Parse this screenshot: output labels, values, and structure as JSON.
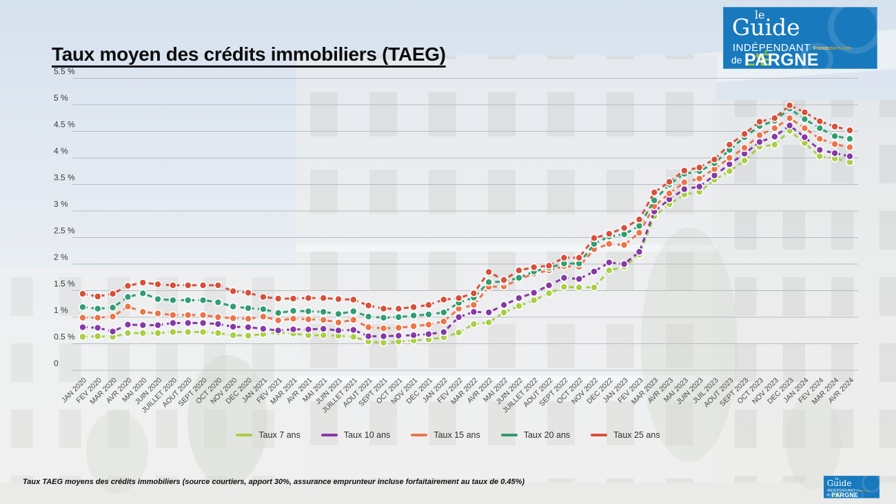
{
  "header": {
    "title": "Taux moyen des crédits immobiliers (TAEG)"
  },
  "logo": {
    "le": "le",
    "guide": "Guide",
    "independant": "INDÉPENDANT",
    "ft_white": "France",
    "ft_orange": "Transactions.com",
    "de": "de",
    "epargne_accent": "L'É",
    "epargne_rest": "PARGNE",
    "bg_color": "#1879bd",
    "accent_color": "#97c93d"
  },
  "footer": {
    "note": "Taux TAEG moyens des crédits immobiliers (source courtiers, apport 30%, assurance emprunteur incluse forfaitairement au taux de 0.45%)"
  },
  "chart_data": {
    "type": "line",
    "title": "Taux moyen des crédits immobiliers (TAEG)",
    "unit": "%",
    "grid": true,
    "legend_position": "bottom",
    "ylim": [
      0,
      5.5
    ],
    "y_ticks": [
      "5.5 %",
      "5 %",
      "4.5 %",
      "4 %",
      "3.5 %",
      "3 %",
      "2.5 %",
      "2 %",
      "1.5 %",
      "1 %",
      "0.5 %",
      "0"
    ],
    "x_labels": [
      "JAN 2020",
      "FEV 2020",
      "MAR 2020",
      "AVR 2020",
      "MAI 2020",
      "JUIN 2020",
      "JUILLET 2020",
      "AOUT 2020",
      "SEPT 2020",
      "OCT 2020",
      "NOV 2020",
      "DEC 2020",
      "JAN 2021",
      "FEV 2021",
      "MAR 2021",
      "AVR 2021",
      "MAI 2021",
      "JUIN 2021",
      "JUILLET 2021",
      "AOUT 2021",
      "SEPT 2021",
      "OCT 2021",
      "NOV 2021",
      "DEC 2021",
      "JAN 2022",
      "FEV 2022",
      "MAR 2022",
      "AVR 2022",
      "MAI 2022",
      "JUIN 2022",
      "JUILLET 2022",
      "AOUT 2022",
      "SEPT 2022",
      "OCT 2022",
      "NOV 2022",
      "DEC 2022",
      "JAN 2023",
      "FEV 2023",
      "MAR 2023",
      "AVR 2023",
      "MAI 2023",
      "JUIN 2023",
      "JUIL 2023",
      "AOUT 2023",
      "SEPT 2023",
      "OCT 2023",
      "NOV 2023",
      "DEC 2023",
      "JAN 2024",
      "FEV 2024",
      "MAR 2024",
      "AVR 2024"
    ],
    "series": [
      {
        "name": "Taux 7 ans",
        "color": "#a8cf45",
        "values": [
          0.63,
          0.64,
          0.63,
          0.7,
          0.7,
          0.7,
          0.72,
          0.72,
          0.72,
          0.7,
          0.66,
          0.65,
          0.68,
          0.71,
          0.69,
          0.66,
          0.66,
          0.65,
          0.63,
          0.54,
          0.52,
          0.54,
          0.56,
          0.58,
          0.62,
          0.71,
          0.87,
          0.9,
          1.09,
          1.21,
          1.32,
          1.45,
          1.57,
          1.56,
          1.56,
          1.88,
          1.95,
          2.18,
          2.9,
          3.13,
          3.31,
          3.36,
          3.59,
          3.75,
          3.95,
          4.21,
          4.25,
          4.51,
          4.28,
          4.03,
          3.99,
          3.92
        ]
      },
      {
        "name": "Taux 10 ans",
        "color": "#8639a8",
        "values": [
          0.81,
          0.8,
          0.73,
          0.86,
          0.85,
          0.85,
          0.89,
          0.89,
          0.89,
          0.87,
          0.82,
          0.81,
          0.78,
          0.75,
          0.77,
          0.77,
          0.78,
          0.75,
          0.76,
          0.64,
          0.64,
          0.65,
          0.66,
          0.68,
          0.72,
          1.0,
          1.1,
          1.09,
          1.23,
          1.36,
          1.46,
          1.6,
          1.74,
          1.72,
          1.86,
          2.03,
          2.0,
          2.23,
          2.99,
          3.22,
          3.41,
          3.46,
          3.67,
          3.88,
          4.08,
          4.3,
          4.4,
          4.61,
          4.39,
          4.15,
          4.09,
          4.03
        ]
      },
      {
        "name": "Taux 15 ans",
        "color": "#ee7448",
        "values": [
          0.99,
          0.99,
          1.01,
          1.2,
          1.1,
          1.07,
          1.04,
          1.04,
          1.04,
          1.0,
          0.98,
          0.97,
          1.01,
          0.94,
          0.97,
          0.96,
          0.95,
          0.9,
          0.95,
          0.81,
          0.79,
          0.8,
          0.83,
          0.86,
          0.92,
          1.16,
          1.23,
          1.57,
          1.58,
          1.71,
          1.82,
          1.88,
          1.96,
          1.95,
          2.28,
          2.38,
          2.36,
          2.59,
          3.09,
          3.33,
          3.54,
          3.61,
          3.79,
          4.0,
          4.19,
          4.43,
          4.56,
          4.75,
          4.56,
          4.36,
          4.26,
          4.2
        ]
      },
      {
        "name": "Taux 20 ans",
        "color": "#2f9e71",
        "values": [
          1.19,
          1.16,
          1.18,
          1.38,
          1.45,
          1.34,
          1.32,
          1.32,
          1.32,
          1.28,
          1.2,
          1.17,
          1.15,
          1.08,
          1.12,
          1.11,
          1.1,
          1.06,
          1.11,
          1.01,
          0.99,
          1.0,
          1.03,
          1.05,
          1.09,
          1.27,
          1.37,
          1.66,
          1.67,
          1.74,
          1.86,
          1.93,
          2.01,
          2.01,
          2.38,
          2.52,
          2.56,
          2.72,
          3.2,
          3.5,
          3.7,
          3.75,
          3.9,
          4.15,
          4.39,
          4.6,
          4.7,
          4.93,
          4.73,
          4.56,
          4.41,
          4.36
        ]
      },
      {
        "name": "Taux 25 ans",
        "color": "#d94f38",
        "values": [
          1.44,
          1.39,
          1.44,
          1.59,
          1.65,
          1.62,
          1.6,
          1.6,
          1.6,
          1.6,
          1.49,
          1.46,
          1.38,
          1.35,
          1.35,
          1.36,
          1.36,
          1.34,
          1.33,
          1.22,
          1.16,
          1.16,
          1.19,
          1.23,
          1.33,
          1.36,
          1.45,
          1.85,
          1.7,
          1.88,
          1.94,
          1.97,
          2.12,
          2.12,
          2.49,
          2.57,
          2.68,
          2.84,
          3.35,
          3.55,
          3.76,
          3.82,
          3.97,
          4.25,
          4.45,
          4.68,
          4.75,
          4.99,
          4.86,
          4.69,
          4.59,
          4.52
        ]
      }
    ]
  }
}
